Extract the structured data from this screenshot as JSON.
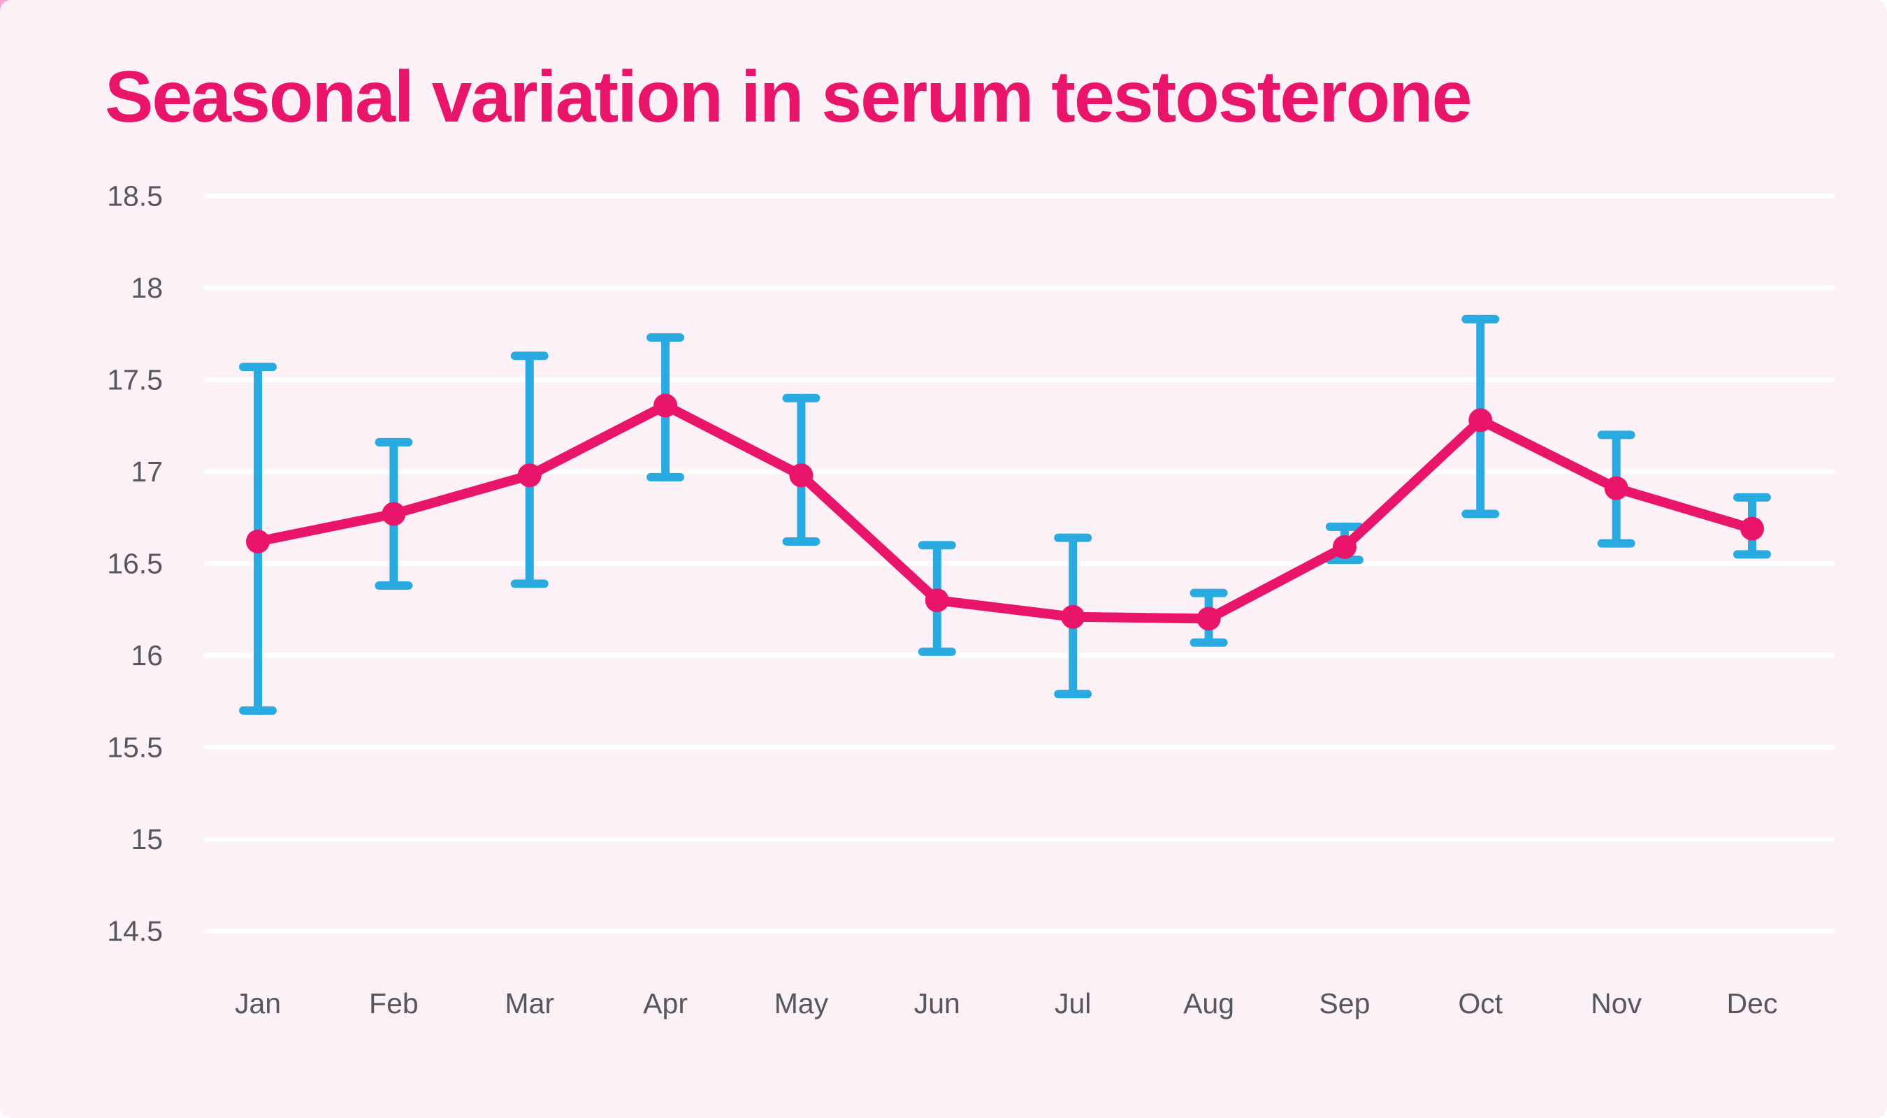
{
  "page": {
    "background": "#ffffff",
    "card_background": "#fcf1f7",
    "corner_accent": "#f6aad1"
  },
  "chart_data": {
    "type": "line",
    "title": "Seasonal variation in serum testosterone",
    "title_color": "#e9156b",
    "categories": [
      "Jan",
      "Feb",
      "Mar",
      "Apr",
      "May",
      "Jun",
      "Jul",
      "Aug",
      "Sep",
      "Oct",
      "Nov",
      "Dec"
    ],
    "series": [
      {
        "name": "mean",
        "values": [
          16.62,
          16.77,
          16.98,
          17.36,
          16.98,
          16.3,
          16.21,
          16.2,
          16.59,
          17.28,
          16.91,
          16.69
        ]
      },
      {
        "name": "error-upper",
        "values": [
          17.57,
          17.16,
          17.63,
          17.73,
          17.4,
          16.6,
          16.64,
          16.34,
          16.7,
          17.83,
          17.2,
          16.86
        ]
      },
      {
        "name": "error-lower",
        "values": [
          15.7,
          16.38,
          16.39,
          16.97,
          16.62,
          16.02,
          15.79,
          16.07,
          16.52,
          16.77,
          16.61,
          16.55
        ]
      }
    ],
    "line_color": "#e9156b",
    "point_color": "#e9156b",
    "error_bar_color": "#29abe2",
    "gridline_color": "#ffffff",
    "tick_label_color": "#56575b",
    "ylim": [
      14.5,
      18.5
    ],
    "ytick_step": 0.5,
    "ytick_labels": [
      "18.5",
      "18",
      "17.5",
      "17",
      "16.5",
      "16",
      "15.5",
      "15",
      "14.5"
    ],
    "grid": "horizontal",
    "legend_position": "none",
    "xlabel": "",
    "ylabel": ""
  }
}
